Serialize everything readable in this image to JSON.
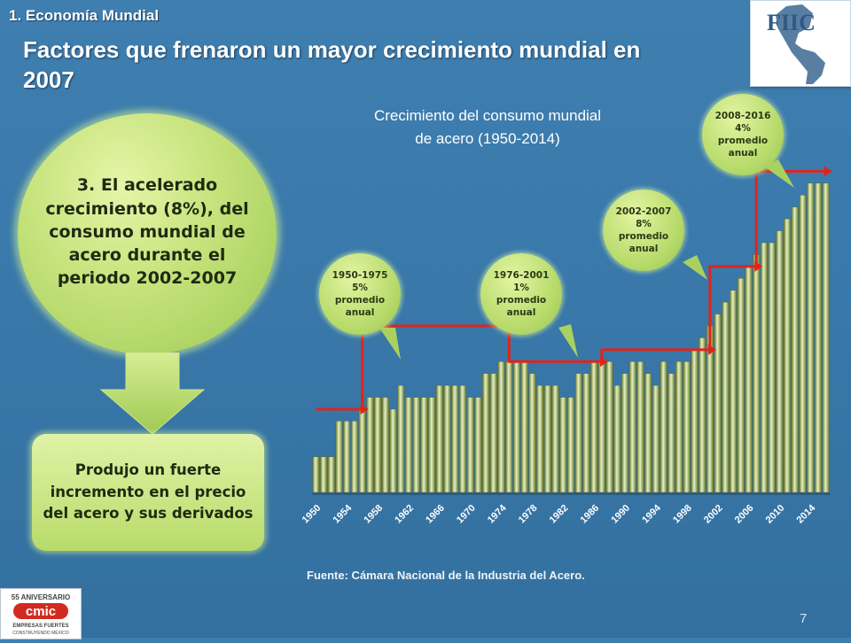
{
  "header": {
    "section": "1. Economía Mundial",
    "title": "Factores que frenaron un mayor crecimiento mundial en 2007"
  },
  "logo": {
    "text": "FIIC"
  },
  "left_panel": {
    "oval_text": "3. El acelerado crecimiento (8%), del consumo mundial de acero durante el periodo 2002-2007",
    "result_text": "Produjo un fuerte incremento en el precio del acero y sus derivados"
  },
  "chart_title": {
    "line1": "Crecimiento del consumo mundial",
    "line2": "de acero (1950-2014)"
  },
  "bubbles": [
    {
      "l1": "1950-1975",
      "l2": "5%",
      "l3": "promedio",
      "l4": "anual"
    },
    {
      "l1": "1976-2001",
      "l2": "1%",
      "l3": "promedio",
      "l4": "anual"
    },
    {
      "l1": "2002-2007",
      "l2": "8%",
      "l3": "promedio",
      "l4": "anual"
    },
    {
      "l1": "2008-2016",
      "l2": "4%",
      "l3": "promedio",
      "l4": "anual"
    }
  ],
  "chart_data": {
    "type": "bar",
    "categories": [
      "1950",
      "1951",
      "1952",
      "1953",
      "1954",
      "1955",
      "1956",
      "1957",
      "1958",
      "1959",
      "1960",
      "1961",
      "1962",
      "1963",
      "1964",
      "1965",
      "1966",
      "1967",
      "1968",
      "1969",
      "1970",
      "1971",
      "1972",
      "1973",
      "1974",
      "1975",
      "1976",
      "1977",
      "1978",
      "1979",
      "1980",
      "1981",
      "1982",
      "1983",
      "1984",
      "1985",
      "1986",
      "1987",
      "1988",
      "1989",
      "1990",
      "1991",
      "1992",
      "1993",
      "1994",
      "1995",
      "1996",
      "1997",
      "1998",
      "1999",
      "2000",
      "2001",
      "2002",
      "2003",
      "2004",
      "2005",
      "2006",
      "2007",
      "2008",
      "2009",
      "2010",
      "2011",
      "2012",
      "2013",
      "2014",
      "2015",
      "2016"
    ],
    "tick_labels": [
      "1950",
      "1954",
      "1958",
      "1962",
      "1966",
      "1970",
      "1974",
      "1978",
      "1982",
      "1986",
      "1990",
      "1994",
      "1998",
      "2002",
      "2006",
      "2010",
      "2014"
    ],
    "values": [
      3,
      3,
      3,
      6,
      6,
      6,
      7,
      8,
      8,
      8,
      7,
      9,
      8,
      8,
      8,
      8,
      9,
      9,
      9,
      9,
      8,
      8,
      10,
      10,
      11,
      11,
      11,
      11,
      10,
      9,
      9,
      9,
      8,
      8,
      10,
      10,
      11,
      11,
      11,
      9,
      10,
      11,
      11,
      10,
      9,
      11,
      10,
      11,
      11,
      12,
      13,
      14,
      15,
      16,
      17,
      18,
      19,
      20,
      21,
      21,
      22,
      23,
      24,
      25,
      26,
      26,
      26
    ],
    "title": "Crecimiento del consumo mundial de acero (1950-2014)",
    "xlabel": "",
    "ylabel": "",
    "ylim": [
      0,
      28
    ],
    "colors": {
      "bar_light": "#e8f0c4",
      "bar_dark": "#6b7d2e",
      "step_line": "#e0241c"
    },
    "step_line": {
      "x": [
        "1950",
        "1956",
        "1956",
        "1975",
        "1975",
        "1987",
        "1987",
        "2001",
        "2001",
        "2007",
        "2007",
        "2016"
      ],
      "y": [
        7,
        7,
        14,
        14,
        11,
        11,
        12,
        12,
        19,
        19,
        27,
        27
      ]
    }
  },
  "footer": {
    "source": "Fuente: Cámara Nacional de la Industria del Acero.",
    "page": "7",
    "cmic_brand": "cmic",
    "cmic_anniv": "55 ANIVERSARIO",
    "cmic_tag1": "EMPRESAS FUERTES",
    "cmic_tag2": "CONSTRUYENDO MÉXICO"
  }
}
